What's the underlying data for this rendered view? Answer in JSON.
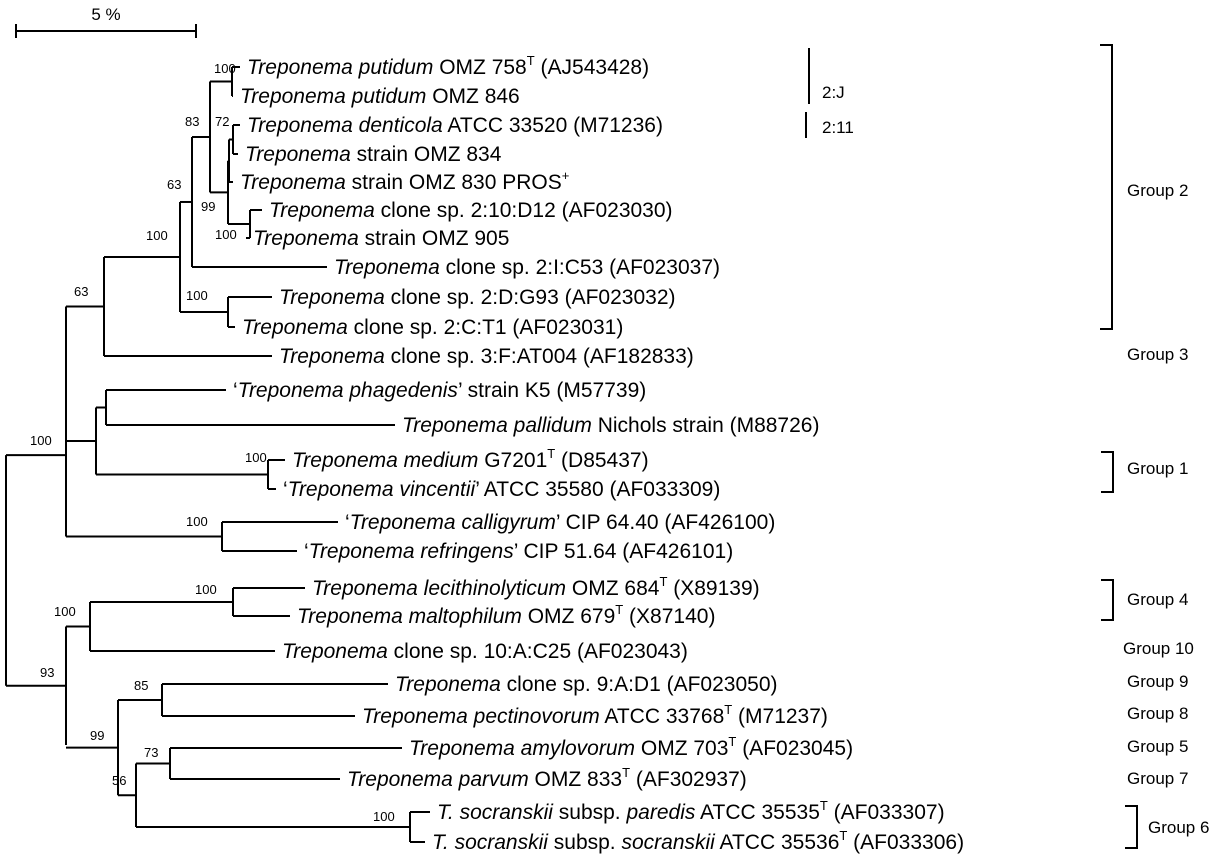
{
  "scale_bar": {
    "label": "5 %"
  },
  "taxa": [
    {
      "id": "putidum758",
      "parts": [
        {
          "t": "Treponema putidum",
          "it": true
        },
        {
          "t": " OMZ 758"
        },
        {
          "t": "T",
          "sup": true
        },
        {
          "t": " (AJ543428)"
        }
      ]
    },
    {
      "id": "putidum846",
      "parts": [
        {
          "t": "Treponema putidum",
          "it": true
        },
        {
          "t": " OMZ 846"
        }
      ]
    },
    {
      "id": "denticola",
      "parts": [
        {
          "t": "Treponema denticola",
          "it": true
        },
        {
          "t": " ATCC 33520 (M71236)"
        }
      ]
    },
    {
      "id": "omz834",
      "parts": [
        {
          "t": "Treponema",
          "it": true
        },
        {
          "t": " strain OMZ 834"
        }
      ]
    },
    {
      "id": "omz830",
      "parts": [
        {
          "t": "Treponema",
          "it": true
        },
        {
          "t": " strain OMZ 830 PROS"
        },
        {
          "t": "+",
          "sup": true
        }
      ]
    },
    {
      "id": "d12",
      "parts": [
        {
          "t": "Treponema",
          "it": true
        },
        {
          "t": " clone sp. 2:10:D12 (AF023030)"
        }
      ]
    },
    {
      "id": "omz905",
      "parts": [
        {
          "t": "Treponema",
          "it": true
        },
        {
          "t": " strain OMZ 905"
        }
      ]
    },
    {
      "id": "c53",
      "parts": [
        {
          "t": "Treponema",
          "it": true
        },
        {
          "t": " clone sp. 2:I:C53 (AF023037)"
        }
      ]
    },
    {
      "id": "g93",
      "parts": [
        {
          "t": "Treponema",
          "it": true
        },
        {
          "t": " clone sp. 2:D:G93 (AF023032)"
        }
      ]
    },
    {
      "id": "t1",
      "parts": [
        {
          "t": "Treponema",
          "it": true
        },
        {
          "t": " clone sp. 2:C:T1 (AF023031)"
        }
      ]
    },
    {
      "id": "at004",
      "parts": [
        {
          "t": "Treponema",
          "it": true
        },
        {
          "t": " clone sp. 3:F:AT004 (AF182833)"
        }
      ]
    },
    {
      "id": "phagedenis",
      "parts": [
        {
          "t": "‘"
        },
        {
          "t": "Treponema phagedenis",
          "it": true
        },
        {
          "t": "’ strain K5 (M57739)"
        }
      ]
    },
    {
      "id": "pallidum",
      "parts": [
        {
          "t": "Treponema pallidum",
          "it": true
        },
        {
          "t": " Nichols strain (M88726)"
        }
      ]
    },
    {
      "id": "medium",
      "parts": [
        {
          "t": "Treponema medium",
          "it": true
        },
        {
          "t": " G7201"
        },
        {
          "t": "T",
          "sup": true
        },
        {
          "t": " (D85437)"
        }
      ]
    },
    {
      "id": "vincentii",
      "parts": [
        {
          "t": "‘"
        },
        {
          "t": "Treponema vincentii",
          "it": true
        },
        {
          "t": "’ ATCC 35580 (AF033309)"
        }
      ]
    },
    {
      "id": "calligyrum",
      "parts": [
        {
          "t": "‘"
        },
        {
          "t": "Treponema calligyrum",
          "it": true
        },
        {
          "t": "’ CIP 64.40 (AF426100)"
        }
      ]
    },
    {
      "id": "refringens",
      "parts": [
        {
          "t": "‘"
        },
        {
          "t": "Treponema refringens",
          "it": true
        },
        {
          "t": "’ CIP 51.64 (AF426101)"
        }
      ]
    },
    {
      "id": "lecithino",
      "parts": [
        {
          "t": "Treponema lecithinolyticum",
          "it": true
        },
        {
          "t": " OMZ 684"
        },
        {
          "t": "T",
          "sup": true
        },
        {
          "t": " (X89139)"
        }
      ]
    },
    {
      "id": "maltophilum",
      "parts": [
        {
          "t": "Treponema maltophilum",
          "it": true
        },
        {
          "t": " OMZ 679"
        },
        {
          "t": "T",
          "sup": true
        },
        {
          "t": " (X87140)"
        }
      ]
    },
    {
      "id": "c25",
      "parts": [
        {
          "t": "Treponema",
          "it": true
        },
        {
          "t": " clone sp. 10:A:C25 (AF023043)"
        }
      ]
    },
    {
      "id": "d1",
      "parts": [
        {
          "t": "Treponema",
          "it": true
        },
        {
          "t": " clone sp. 9:A:D1 (AF023050)"
        }
      ]
    },
    {
      "id": "pectino",
      "parts": [
        {
          "t": "Treponema pectinovorum",
          "it": true
        },
        {
          "t": " ATCC 33768"
        },
        {
          "t": "T",
          "sup": true
        },
        {
          "t": " (M71237)"
        }
      ]
    },
    {
      "id": "amylo",
      "parts": [
        {
          "t": "Treponema amylovorum",
          "it": true
        },
        {
          "t": " OMZ 703"
        },
        {
          "t": "T",
          "sup": true
        },
        {
          "t": " (AF023045)"
        }
      ]
    },
    {
      "id": "parvum",
      "parts": [
        {
          "t": "Treponema parvum",
          "it": true
        },
        {
          "t": " OMZ 833"
        },
        {
          "t": "T",
          "sup": true
        },
        {
          "t": " (AF302937)"
        }
      ]
    },
    {
      "id": "paredis",
      "parts": [
        {
          "t": "T. socranskii",
          "it": true
        },
        {
          "t": " subsp. "
        },
        {
          "t": "paredis",
          "it": true
        },
        {
          "t": " ATCC 35535"
        },
        {
          "t": "T",
          "sup": true
        },
        {
          "t": " (AF033307)"
        }
      ]
    },
    {
      "id": "socranskii",
      "parts": [
        {
          "t": "T. socranskii",
          "it": true
        },
        {
          "t": " subsp. "
        },
        {
          "t": "socranskii",
          "it": true
        },
        {
          "t": " ATCC 35536"
        },
        {
          "t": "T",
          "sup": true
        },
        {
          "t": " (AF033306)"
        }
      ]
    }
  ],
  "support_values": [
    {
      "id": "n_put",
      "label": "100"
    },
    {
      "id": "n_den",
      "label": "72"
    },
    {
      "id": "n_99a",
      "label": "99"
    },
    {
      "id": "n_905",
      "label": "100"
    },
    {
      "id": "n_83",
      "label": "83"
    },
    {
      "id": "n_63a",
      "label": "63"
    },
    {
      "id": "n_g93",
      "label": "100"
    },
    {
      "id": "n_100b",
      "label": "100"
    },
    {
      "id": "n_63b",
      "label": "63"
    },
    {
      "id": "n_med",
      "label": "100"
    },
    {
      "id": "n_cal",
      "label": "100"
    },
    {
      "id": "n_root",
      "label": "100"
    },
    {
      "id": "n_lec",
      "label": "100"
    },
    {
      "id": "n_g4",
      "label": "100"
    },
    {
      "id": "n_85",
      "label": "85"
    },
    {
      "id": "n_73",
      "label": "73"
    },
    {
      "id": "n_soc",
      "label": "100"
    },
    {
      "id": "n_56",
      "label": "56"
    },
    {
      "id": "n_99b",
      "label": "99"
    },
    {
      "id": "n_93",
      "label": "93"
    }
  ],
  "clade_labels": [
    {
      "id": "2J",
      "label": "2:J"
    },
    {
      "id": "211",
      "label": "2:11"
    }
  ],
  "groups": [
    {
      "id": "g2",
      "label": "Group 2"
    },
    {
      "id": "g3",
      "label": "Group 3"
    },
    {
      "id": "g1",
      "label": "Group 1"
    },
    {
      "id": "g4",
      "label": "Group 4"
    },
    {
      "id": "g10",
      "label": "Group 10"
    },
    {
      "id": "g9",
      "label": "Group 9"
    },
    {
      "id": "g8",
      "label": "Group 8"
    },
    {
      "id": "g5",
      "label": "Group 5"
    },
    {
      "id": "g7",
      "label": "Group 7"
    },
    {
      "id": "g6",
      "label": "Group 6"
    }
  ]
}
